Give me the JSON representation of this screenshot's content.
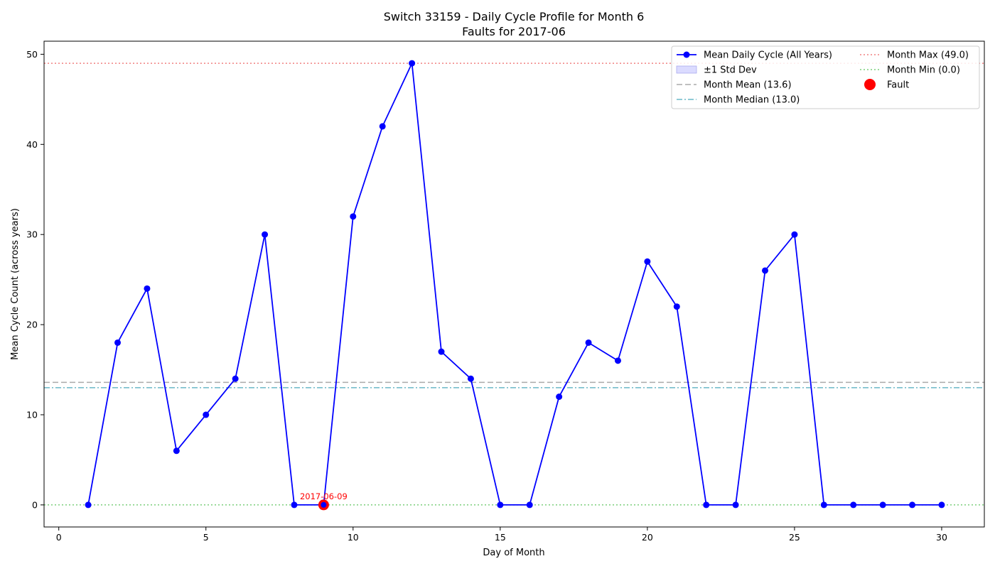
{
  "chart_data": {
    "type": "line",
    "title": "Switch 33159 - Daily Cycle Profile for Month 6",
    "subtitle": "Faults for 2017-06",
    "xlabel": "Day of Month",
    "ylabel": "Mean Cycle Count (across years)",
    "xlim": [
      -0.5,
      31.45
    ],
    "ylim": [
      -2.45,
      51.45
    ],
    "xticks": [
      0,
      5,
      10,
      15,
      20,
      25,
      30
    ],
    "yticks": [
      0,
      10,
      20,
      30,
      40,
      50
    ],
    "grid": false,
    "legend_position": "top-right",
    "series": [
      {
        "name": "Mean Daily Cycle (All Years)",
        "color": "#0000ff",
        "x": [
          1,
          2,
          3,
          4,
          5,
          6,
          7,
          8,
          9,
          10,
          11,
          12,
          13,
          14,
          15,
          16,
          17,
          18,
          19,
          20,
          21,
          22,
          23,
          24,
          25,
          26,
          27,
          28,
          29,
          30
        ],
        "values": [
          0,
          18,
          24,
          6,
          10,
          14,
          30,
          0,
          0,
          32,
          42,
          49,
          17,
          14,
          0,
          0,
          12,
          18,
          16,
          27,
          22,
          0,
          0,
          26,
          30,
          0,
          0,
          0,
          0,
          0
        ]
      }
    ],
    "std_band": {
      "name": "±1 Std Dev",
      "color": "#ccccff"
    },
    "reference_lines": [
      {
        "name": "Month Mean (13.6)",
        "value": 13.6,
        "color": "#aaaaaa",
        "style": "dashed"
      },
      {
        "name": "Month Median (13.0)",
        "value": 13.0,
        "color": "#6ab8c8",
        "style": "dashdot"
      },
      {
        "name": "Month Max (49.0)",
        "value": 49.0,
        "color": "#f08080",
        "style": "dotted"
      },
      {
        "name": "Month Min (0.0)",
        "value": 0.0,
        "color": "#7ccf7c",
        "style": "dotted"
      }
    ],
    "faults": {
      "name": "Fault",
      "color": "#ff0000",
      "points": [
        {
          "x": 9,
          "y": 0,
          "label": "2017-06-09"
        }
      ]
    }
  }
}
